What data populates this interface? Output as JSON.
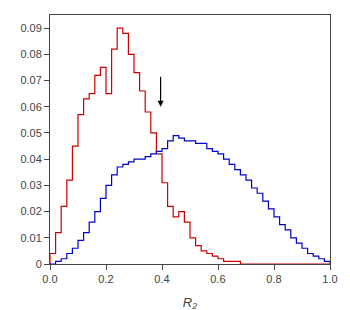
{
  "chart_data": {
    "type": "histogram",
    "xlabel": "R₂",
    "bins": [
      0.0,
      0.02,
      0.04,
      0.06,
      0.08,
      0.1,
      0.12,
      0.14,
      0.16,
      0.18,
      0.2,
      0.22,
      0.24,
      0.26,
      0.28,
      0.3,
      0.32,
      0.34,
      0.36,
      0.38,
      0.4,
      0.42,
      0.44,
      0.46,
      0.48,
      0.5,
      0.52,
      0.54,
      0.56,
      0.58,
      0.6,
      0.62,
      0.64,
      0.66,
      0.68,
      0.7,
      0.72,
      0.74,
      0.76,
      0.78,
      0.8,
      0.82,
      0.84,
      0.86,
      0.88,
      0.9,
      0.92,
      0.94,
      0.96,
      0.98,
      1.0
    ],
    "series": [
      {
        "color": "#cc0000",
        "values": [
          0.004,
          0.012,
          0.022,
          0.032,
          0.045,
          0.057,
          0.063,
          0.065,
          0.072,
          0.075,
          0.065,
          0.082,
          0.09,
          0.088,
          0.08,
          0.073,
          0.066,
          0.058,
          0.05,
          0.042,
          0.031,
          0.022,
          0.018,
          0.02,
          0.016,
          0.01,
          0.007,
          0.005,
          0.004,
          0.003,
          0.002,
          0.001,
          0.001,
          0.001,
          0.0,
          0.0,
          0.0,
          0.0,
          0.0,
          0.0,
          0.0,
          0.0,
          0.0,
          0.0,
          0.0,
          0.0,
          0.0,
          0.0,
          0.0,
          0.0
        ]
      },
      {
        "color": "#0000cc",
        "values": [
          0.0,
          0.001,
          0.002,
          0.004,
          0.006,
          0.009,
          0.012,
          0.016,
          0.02,
          0.025,
          0.03,
          0.034,
          0.037,
          0.038,
          0.039,
          0.04,
          0.04,
          0.041,
          0.042,
          0.043,
          0.044,
          0.047,
          0.049,
          0.048,
          0.047,
          0.047,
          0.046,
          0.046,
          0.044,
          0.043,
          0.042,
          0.04,
          0.038,
          0.036,
          0.034,
          0.032,
          0.029,
          0.027,
          0.024,
          0.021,
          0.018,
          0.015,
          0.013,
          0.01,
          0.008,
          0.006,
          0.004,
          0.003,
          0.002,
          0.001
        ]
      }
    ],
    "arrow": {
      "x": 0.395,
      "y_start": 0.072,
      "y_end": 0.06
    },
    "xlim": [
      0,
      1
    ],
    "ylim": [
      0,
      0.095
    ],
    "xticks": [
      {
        "value": 0,
        "label": "0.0"
      },
      0.2,
      0.4,
      0.6,
      0.8,
      {
        "value": 1,
        "label": "1.0"
      }
    ],
    "yticks": [
      0,
      0.01,
      0.02,
      0.03,
      0.04,
      0.05,
      0.06,
      0.07,
      0.08,
      0.09
    ],
    "grid": false
  }
}
